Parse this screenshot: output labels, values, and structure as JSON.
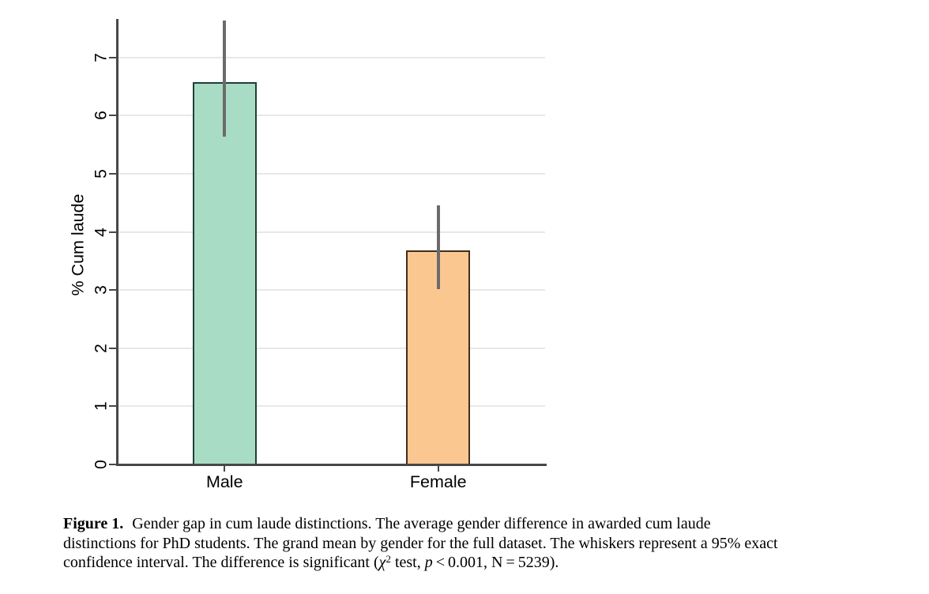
{
  "chart_data": {
    "type": "bar",
    "title": "",
    "categories": [
      "Male",
      "Female"
    ],
    "values": [
      6.57,
      3.68
    ],
    "ci_low": [
      5.64,
      3.01
    ],
    "ci_high": [
      7.64,
      4.46
    ],
    "ylabel": "% Cum laude",
    "xlabel": "",
    "ylim": [
      0,
      7.65
    ],
    "yticks": [
      0,
      1,
      2,
      3,
      4,
      5,
      6,
      7
    ],
    "grid": "horizontal gridlines at integer ticks",
    "legend": "none",
    "bar_fill_colors": [
      "#a9dcc4",
      "#fbc791"
    ],
    "bar_border_colors": [
      "#213e38",
      "#3f2e1b"
    ],
    "whisker_color": "#6b6b6b",
    "gridline_color": "#e8e8e8",
    "axis_color": "#474747",
    "background_color": "#ffffff"
  },
  "caption": {
    "label": "Figure 1.",
    "line1": "Gender gap in cum laude distinctions. The average gender difference in awarded cum laude",
    "line2": "distinctions for PhD students. The grand mean by gender for the full dataset. The whiskers represent a 95% exact",
    "line3_pre": "confidence interval. The difference is significant (",
    "chi_symbol": "χ",
    "chi_superscript": "2",
    "line3_mid": " test, ",
    "p_symbol": "p",
    "line3_post": " < 0.001, N = 5239)."
  }
}
